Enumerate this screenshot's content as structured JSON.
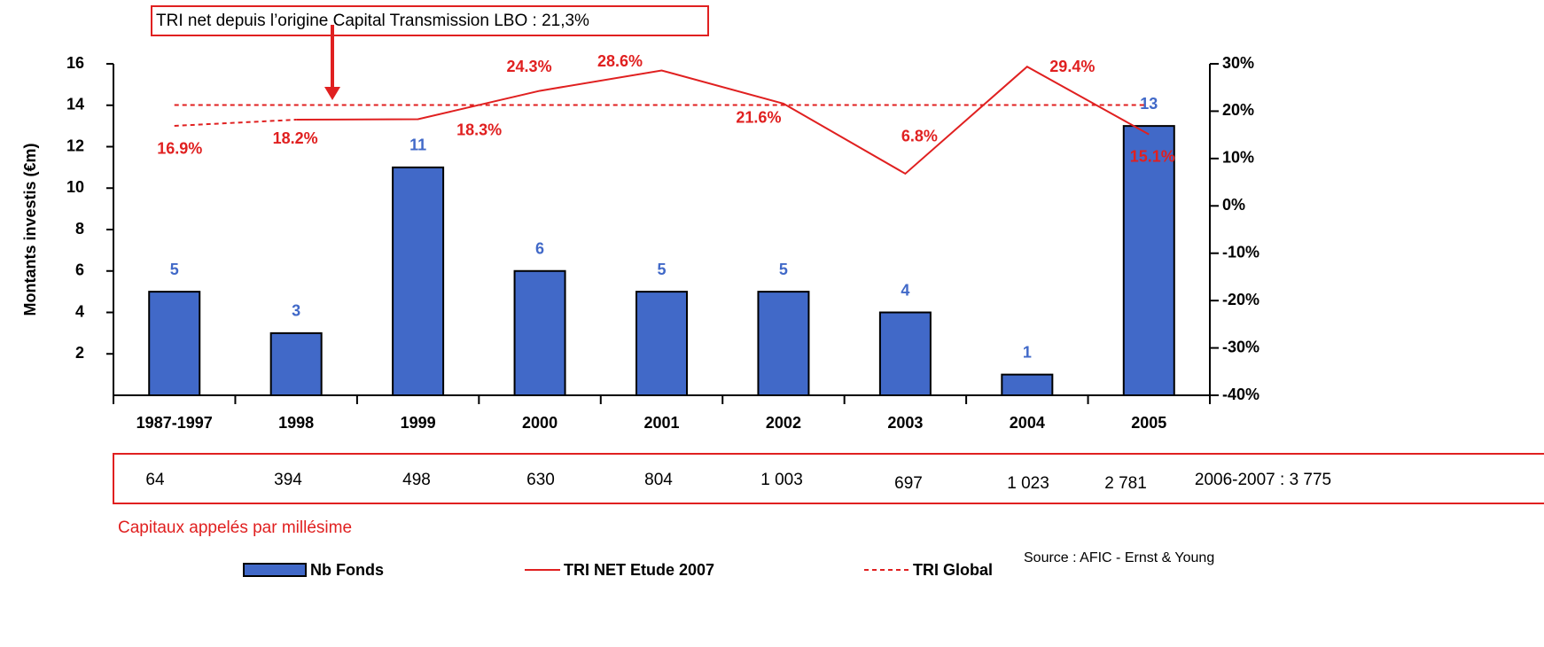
{
  "chart_data": {
    "type": "bar_line",
    "annotation": "TRI net depuis l’origine Capital Transmission LBO : 21,3%",
    "ylabel": "Montants investis (€m)",
    "categories": [
      "1987-1997",
      "1998",
      "1999",
      "2000",
      "2001",
      "2002",
      "2003",
      "2004",
      "2005"
    ],
    "series": [
      {
        "name": "Nb Fonds",
        "color": "#4169c8",
        "values": [
          5,
          3,
          11,
          6,
          5,
          5,
          4,
          1,
          13
        ]
      },
      {
        "name": "TRI NET Etude 2007",
        "color": "#e02020",
        "axis": "y2",
        "values": [
          16.9,
          18.2,
          18.3,
          24.3,
          28.6,
          21.6,
          6.8,
          29.4,
          15.1
        ],
        "value_labels": [
          "16.9%",
          "18.2%",
          "18.3%",
          "24.3%",
          "28.6%",
          "21.6%",
          "6.8%",
          "29.4%",
          "15.1%"
        ]
      },
      {
        "name": "TRI Global",
        "color": "#e02020",
        "axis": "y2",
        "value": 21.3
      }
    ],
    "ylim": [
      0,
      16
    ],
    "yticks": [
      2,
      4,
      6,
      8,
      10,
      12,
      14,
      16
    ],
    "y2lim": [
      -40,
      30
    ],
    "y2ticks": [
      {
        "value": -40,
        "label": "-40%"
      },
      {
        "value": -30,
        "label": "-30%"
      },
      {
        "value": -20,
        "label": "-20%"
      },
      {
        "value": -10,
        "label": "-10%"
      },
      {
        "value": 0,
        "label": "0%"
      },
      {
        "value": 10,
        "label": "10%"
      },
      {
        "value": 20,
        "label": "20%"
      },
      {
        "value": 30,
        "label": "30%"
      }
    ],
    "capital_label": "Capitaux appelés par millésime",
    "capital": [
      "64",
      "394",
      "498",
      "630",
      "804",
      "1 003",
      "697",
      "1 023",
      "2 781",
      "2006-2007 : 3 775"
    ],
    "source": "Source : AFIC - Ernst & Young"
  }
}
